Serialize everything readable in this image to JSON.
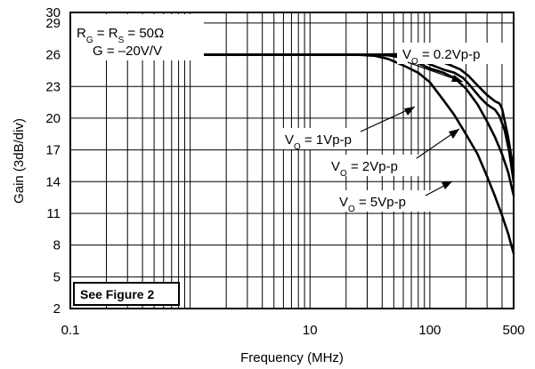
{
  "chart_data": {
    "type": "line",
    "x_scale": "log",
    "xlim": [
      0.1,
      500
    ],
    "ylim": [
      2,
      30
    ],
    "xlabel": "Frequency (MHz)",
    "ylabel": "Gain (3dB/div)",
    "x_ticks": [
      {
        "value": 0.1,
        "label": "0.1"
      },
      {
        "value": 10,
        "label": "10"
      },
      {
        "value": 100,
        "label": "100"
      },
      {
        "value": 500,
        "label": "500"
      }
    ],
    "y_ticks": [
      2,
      5,
      8,
      11,
      14,
      17,
      20,
      23,
      26,
      29,
      30
    ],
    "grid": true,
    "conditions": {
      "line1": {
        "main": "R",
        "sub1": "G",
        "mid": " = R",
        "sub2": "S",
        "end": " = 50Ω"
      },
      "line2": "G = –20V/V"
    },
    "figure_note": "See Figure 2",
    "series": [
      {
        "name": "VO = 0.2Vp-p",
        "label": {
          "pre": "V",
          "sub": "O",
          "post": " = 0.2Vp-p"
        },
        "points": [
          [
            0.1,
            26
          ],
          [
            10,
            26
          ],
          [
            30,
            26
          ],
          [
            50,
            26.05
          ],
          [
            70,
            26.1
          ],
          [
            85,
            26.05
          ],
          [
            100,
            25.8
          ],
          [
            120,
            25.4
          ],
          [
            150,
            25
          ],
          [
            180,
            24.6
          ],
          [
            210,
            24
          ],
          [
            250,
            23.1
          ],
          [
            300,
            22.2
          ],
          [
            350,
            21.6
          ],
          [
            380,
            21.4
          ],
          [
            400,
            20.9
          ],
          [
            420,
            19.8
          ],
          [
            450,
            18.2
          ],
          [
            480,
            16.3
          ],
          [
            500,
            15
          ]
        ]
      },
      {
        "name": "VO = 1Vp-p",
        "label": {
          "pre": "V",
          "sub": "O",
          "post": " = 1Vp-p"
        },
        "points": [
          [
            0.1,
            26
          ],
          [
            10,
            26
          ],
          [
            30,
            26
          ],
          [
            50,
            26
          ],
          [
            65,
            25.9
          ],
          [
            80,
            25.6
          ],
          [
            100,
            25.1
          ],
          [
            130,
            24.6
          ],
          [
            160,
            24.3
          ],
          [
            190,
            23.8
          ],
          [
            220,
            23
          ],
          [
            260,
            22
          ],
          [
            300,
            21.3
          ],
          [
            350,
            20.8
          ],
          [
            380,
            20.2
          ],
          [
            420,
            18.9
          ],
          [
            460,
            16.8
          ],
          [
            500,
            14
          ]
        ]
      },
      {
        "name": "VO = 2Vp-p",
        "label": {
          "pre": "V",
          "sub": "O",
          "post": " = 2Vp-p"
        },
        "points": [
          [
            0.1,
            26
          ],
          [
            10,
            26
          ],
          [
            30,
            26
          ],
          [
            45,
            25.95
          ],
          [
            60,
            25.7
          ],
          [
            80,
            25.2
          ],
          [
            100,
            24.7
          ],
          [
            130,
            24.3
          ],
          [
            160,
            23.8
          ],
          [
            200,
            22.8
          ],
          [
            250,
            21.3
          ],
          [
            300,
            19.7
          ],
          [
            350,
            18.2
          ],
          [
            400,
            16.6
          ],
          [
            450,
            14.9
          ],
          [
            500,
            12.7
          ]
        ]
      },
      {
        "name": "VO = 5Vp-p",
        "label": {
          "pre": "V",
          "sub": "O",
          "post": " = 5Vp-p"
        },
        "points": [
          [
            0.1,
            26
          ],
          [
            10,
            26
          ],
          [
            25,
            26
          ],
          [
            35,
            25.9
          ],
          [
            45,
            25.6
          ],
          [
            60,
            25
          ],
          [
            80,
            24.3
          ],
          [
            100,
            23.4
          ],
          [
            130,
            21.7
          ],
          [
            160,
            20.3
          ],
          [
            200,
            18.5
          ],
          [
            250,
            16.6
          ],
          [
            300,
            14.5
          ],
          [
            350,
            12.6
          ],
          [
            400,
            10.8
          ],
          [
            450,
            9.1
          ],
          [
            500,
            7.2
          ]
        ]
      }
    ]
  }
}
